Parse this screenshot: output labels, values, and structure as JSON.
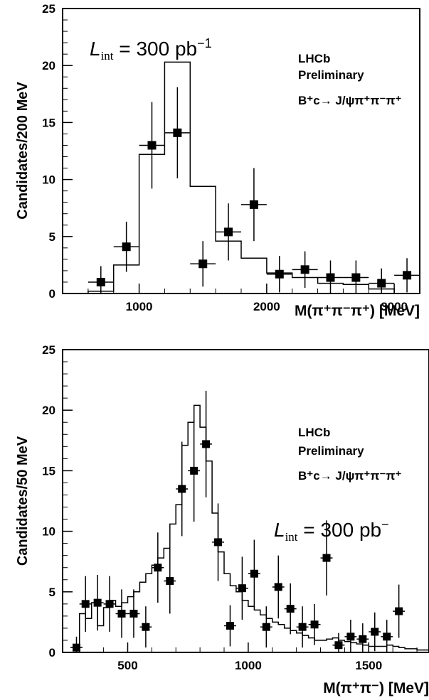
{
  "chart_data": [
    {
      "type": "histogram",
      "xlabel": "M(π⁺π⁻π⁺)  [MeV]",
      "ylabel": "Candidates/200 MeV",
      "xlim": [
        400,
        3200
      ],
      "ylim": [
        0,
        25
      ],
      "xticks": [
        "1000",
        "2000",
        "3000"
      ],
      "xtick_values": [
        1000,
        2000,
        3000
      ],
      "yticks": [
        "0",
        "5",
        "10",
        "15",
        "20",
        "25"
      ],
      "ytick_values": [
        0,
        5,
        10,
        15,
        20,
        25
      ],
      "experiment": "LHCb",
      "status": "Preliminary",
      "decay": "B⁺c→ J/ψπ⁺π⁻π⁺",
      "luminosity": "Lint = 300 pb⁻¹",
      "lumi_L": "L",
      "lumi_sub": "int",
      "lumi_rest": " = 300 pb",
      "lumi_sup": "−1",
      "bin_width": 200,
      "points": {
        "x": [
          700,
          900,
          1100,
          1300,
          1500,
          1700,
          1900,
          2100,
          2300,
          2500,
          2700,
          2900,
          3100
        ],
        "y": [
          1.0,
          4.1,
          13.0,
          14.1,
          2.6,
          5.4,
          7.8,
          1.7,
          2.1,
          1.4,
          1.4,
          0.9,
          1.6
        ],
        "yerr": [
          1.4,
          2.2,
          3.8,
          4.0,
          2.0,
          2.5,
          3.2,
          1.6,
          1.6,
          1.5,
          1.5,
          1.3,
          1.5
        ]
      },
      "histogram": {
        "edges": [
          600,
          800,
          1000,
          1200,
          1400,
          1600,
          1800,
          2000,
          2200,
          2400,
          2600,
          2800,
          3000
        ],
        "values": [
          0.2,
          2.5,
          12.2,
          20.3,
          9.4,
          4.6,
          3.1,
          1.8,
          1.4,
          0.9,
          0.8,
          0.4
        ]
      }
    },
    {
      "type": "histogram",
      "xlabel": "M(π⁺π⁻)  [MeV]",
      "ylabel": "Candidates/50 MeV",
      "xlim": [
        230,
        1750
      ],
      "ylim": [
        0,
        25
      ],
      "xticks": [
        "500",
        "1000",
        "1500"
      ],
      "xtick_values": [
        500,
        1000,
        1500
      ],
      "yticks": [
        "0",
        "5",
        "10",
        "15",
        "20",
        "25"
      ],
      "ytick_values": [
        0,
        5,
        10,
        15,
        20,
        25
      ],
      "experiment": "LHCb",
      "status": "Preliminary",
      "decay": "B⁺c→ J/ψπ⁺π⁻π⁺",
      "luminosity": "Lint = 300 pb⁻",
      "lumi_L": "L",
      "lumi_sub": "int",
      "lumi_rest": " = 300 pb",
      "lumi_sup": "−",
      "bin_width": 50,
      "points": {
        "x": [
          287.5,
          325,
          375,
          425,
          475,
          525,
          575,
          625,
          675,
          725,
          775,
          825,
          875,
          925,
          975,
          1025,
          1075,
          1125,
          1175,
          1225,
          1275,
          1325,
          1375,
          1425,
          1475,
          1525,
          1575,
          1625
        ],
        "y": [
          0.4,
          4.0,
          4.1,
          4.0,
          3.2,
          3.2,
          2.1,
          7.0,
          5.9,
          13.5,
          15.0,
          17.2,
          9.1,
          2.2,
          5.3,
          6.5,
          2.1,
          5.4,
          3.6,
          2.1,
          2.3,
          7.8,
          0.6,
          1.3,
          1.1,
          1.7,
          1.3,
          3.4
        ],
        "yerr": [
          0.9,
          2.3,
          2.3,
          2.3,
          2.0,
          2.0,
          1.7,
          2.9,
          2.7,
          3.9,
          4.2,
          4.4,
          3.2,
          1.7,
          2.6,
          2.8,
          1.7,
          2.6,
          2.1,
          1.7,
          1.7,
          3.1,
          1.0,
          1.4,
          1.3,
          1.6,
          1.4,
          2.2
        ]
      },
      "histogram": {
        "edges": [
          300,
          325,
          350,
          375,
          400,
          425,
          450,
          475,
          500,
          525,
          550,
          575,
          600,
          625,
          650,
          675,
          700,
          725,
          750,
          775,
          800,
          825,
          850,
          875,
          900,
          925,
          950,
          975,
          1000,
          1025,
          1050,
          1075,
          1100,
          1125,
          1150,
          1175,
          1200,
          1225,
          1250,
          1275,
          1300,
          1325,
          1350,
          1375,
          1400,
          1425,
          1450,
          1475,
          1500,
          1525,
          1550,
          1575,
          1600,
          1625,
          1650,
          1675,
          1700,
          1725,
          1750
        ],
        "values": [
          3.2,
          2.8,
          4.1,
          2.2,
          3.7,
          4.3,
          3.8,
          4.1,
          4.6,
          5.0,
          5.8,
          6.5,
          7.2,
          7.8,
          8.6,
          10.6,
          12.2,
          17.1,
          19.0,
          20.4,
          18.6,
          15.8,
          11.5,
          8.3,
          6.5,
          5.5,
          5.0,
          4.3,
          3.8,
          3.5,
          3.1,
          2.8,
          2.5,
          2.3,
          2.0,
          1.8,
          1.6,
          1.4,
          1.2,
          1.0,
          1.0,
          1.1,
          1.2,
          1.0,
          0.9,
          0.8,
          0.7,
          0.6,
          0.5,
          0.5,
          0.5,
          0.6,
          0.5,
          0.4,
          0.3,
          0.3,
          0.2,
          0.2
        ]
      }
    }
  ]
}
